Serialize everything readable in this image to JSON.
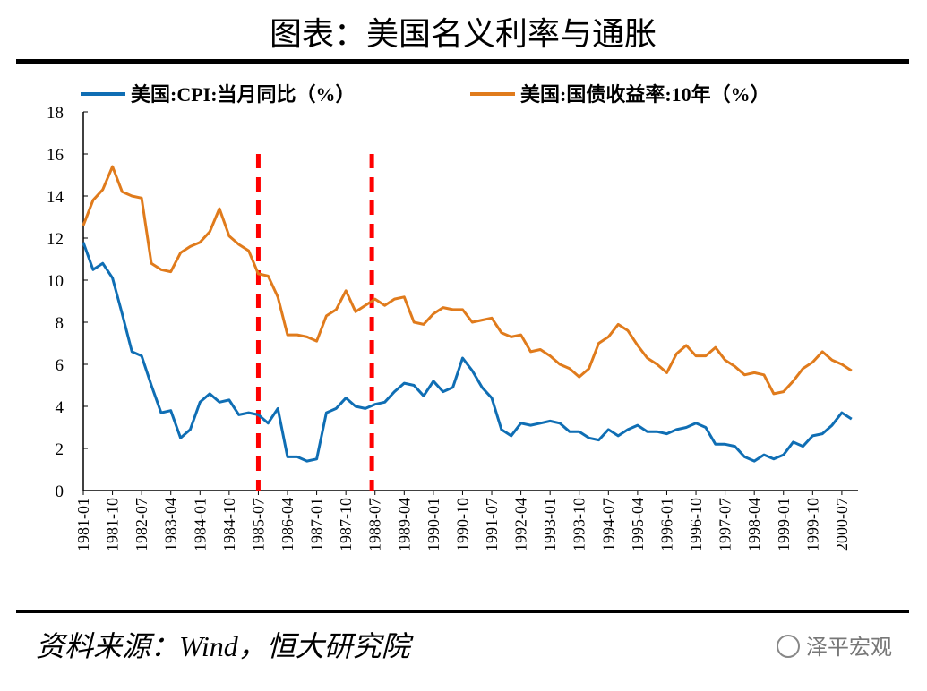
{
  "chart_data": {
    "type": "line",
    "title": "图表：美国名义利率与通胀",
    "x": [
      "1981-01",
      "1981-04",
      "1981-07",
      "1981-10",
      "1982-01",
      "1982-04",
      "1982-07",
      "1982-10",
      "1983-01",
      "1983-04",
      "1983-07",
      "1983-10",
      "1984-01",
      "1984-04",
      "1984-07",
      "1984-10",
      "1985-01",
      "1985-04",
      "1985-07",
      "1985-10",
      "1986-01",
      "1986-04",
      "1986-07",
      "1986-10",
      "1987-01",
      "1987-04",
      "1987-07",
      "1987-10",
      "1988-01",
      "1988-04",
      "1988-07",
      "1988-10",
      "1989-01",
      "1989-04",
      "1989-07",
      "1989-10",
      "1990-01",
      "1990-04",
      "1990-07",
      "1990-10",
      "1991-01",
      "1991-04",
      "1991-07",
      "1991-10",
      "1992-01",
      "1992-04",
      "1992-07",
      "1992-10",
      "1993-01",
      "1993-04",
      "1993-07",
      "1993-10",
      "1994-01",
      "1994-04",
      "1994-07",
      "1994-10",
      "1995-01",
      "1995-04",
      "1995-07",
      "1995-10",
      "1996-01",
      "1996-04",
      "1996-07",
      "1996-10",
      "1997-01",
      "1997-04",
      "1997-07",
      "1997-10",
      "1998-01",
      "1998-04",
      "1998-07",
      "1998-10",
      "1999-01",
      "1999-04",
      "1999-07",
      "1999-10",
      "2000-01",
      "2000-04",
      "2000-07",
      "2000-10"
    ],
    "series": [
      {
        "name": "美国:CPI:当月同比（%）",
        "color": "#0f6eb4",
        "values": [
          11.8,
          10.5,
          10.8,
          10.1,
          8.4,
          6.6,
          6.4,
          5.0,
          3.7,
          3.8,
          2.5,
          2.9,
          4.2,
          4.6,
          4.2,
          4.3,
          3.6,
          3.7,
          3.6,
          3.2,
          3.9,
          1.6,
          1.6,
          1.4,
          1.5,
          3.7,
          3.9,
          4.4,
          4.0,
          3.9,
          4.1,
          4.2,
          4.7,
          5.1,
          5.0,
          4.5,
          5.2,
          4.7,
          4.9,
          6.3,
          5.7,
          4.9,
          4.4,
          2.9,
          2.6,
          3.2,
          3.1,
          3.2,
          3.3,
          3.2,
          2.8,
          2.8,
          2.5,
          2.4,
          2.9,
          2.6,
          2.9,
          3.1,
          2.8,
          2.8,
          2.7,
          2.9,
          3.0,
          3.2,
          3.0,
          2.2,
          2.2,
          2.1,
          1.6,
          1.4,
          1.7,
          1.5,
          1.7,
          2.3,
          2.1,
          2.6,
          2.7,
          3.1,
          3.7,
          3.4
        ]
      },
      {
        "name": "美国:国债收益率:10年（%）",
        "color": "#e07b1c",
        "values": [
          12.6,
          13.8,
          14.3,
          15.4,
          14.2,
          14.0,
          13.9,
          10.8,
          10.5,
          10.4,
          11.3,
          11.6,
          11.8,
          12.3,
          13.4,
          12.1,
          11.7,
          11.4,
          10.3,
          10.2,
          9.2,
          7.4,
          7.4,
          7.3,
          7.1,
          8.3,
          8.6,
          9.5,
          8.5,
          8.8,
          9.1,
          8.8,
          9.1,
          9.2,
          8.0,
          7.9,
          8.4,
          8.7,
          8.6,
          8.6,
          8.0,
          8.1,
          8.2,
          7.5,
          7.3,
          7.4,
          6.6,
          6.7,
          6.4,
          6.0,
          5.8,
          5.4,
          5.8,
          7.0,
          7.3,
          7.9,
          7.6,
          6.9,
          6.3,
          6.0,
          5.6,
          6.5,
          6.9,
          6.4,
          6.4,
          6.8,
          6.2,
          5.9,
          5.5,
          5.6,
          5.5,
          4.6,
          4.7,
          5.2,
          5.8,
          6.1,
          6.6,
          6.2,
          6.0,
          5.7
        ]
      }
    ],
    "xlim": [
      "1981-01",
      "2000-12"
    ],
    "xticks": [
      "1981-01",
      "1981-10",
      "1982-07",
      "1983-04",
      "1984-01",
      "1984-10",
      "1985-07",
      "1986-04",
      "1987-01",
      "1987-10",
      "1988-07",
      "1989-04",
      "1990-01",
      "1990-10",
      "1991-07",
      "1992-04",
      "1993-01",
      "1993-10",
      "1994-07",
      "1995-04",
      "1996-01",
      "1996-10",
      "1997-07",
      "1998-04",
      "1999-01",
      "1999-10",
      "2000-07"
    ],
    "ylim": [
      0,
      18
    ],
    "yticks": [
      0,
      2,
      4,
      6,
      8,
      10,
      12,
      14,
      16,
      18
    ],
    "markers": [
      "1985-07",
      "1988-06"
    ],
    "marker_color": "#ff0000",
    "source": "资料来源：Wind，恒大研究院",
    "watermark": "泽平宏观"
  }
}
